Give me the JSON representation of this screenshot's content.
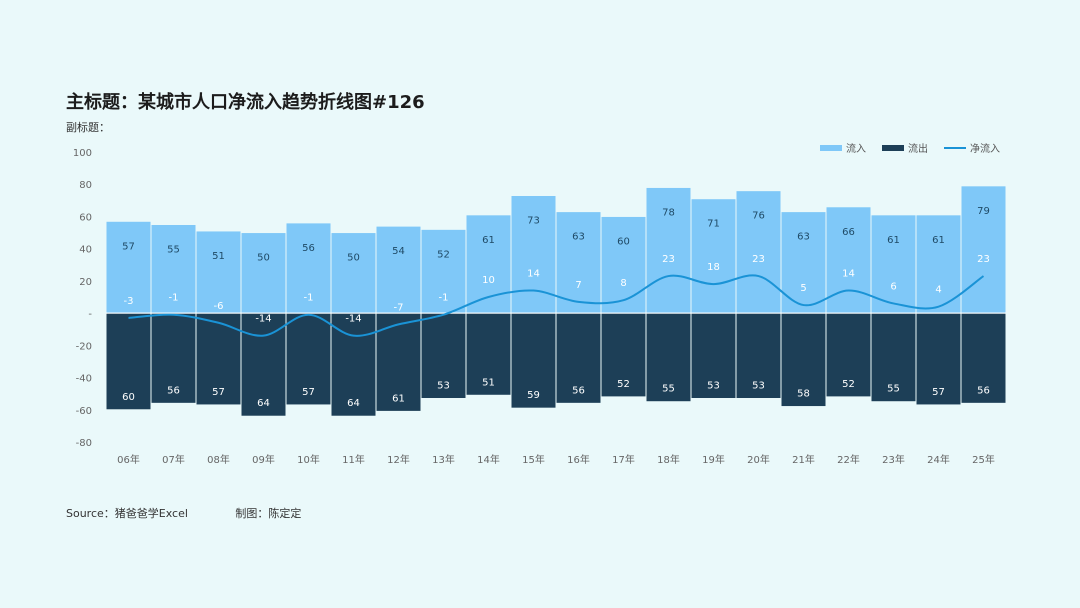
{
  "title": "主标题：某城市人口净流入趋势折线图#126",
  "subtitle": "副标题：",
  "footer": {
    "source": "Source：猪爸爸学Excel",
    "author": "制图：陈定定"
  },
  "colors": {
    "inflow": "#7fc8f8",
    "outflow": "#1d3f57",
    "net": "#1a93d6",
    "axis_text": "#666666"
  },
  "chart_data": {
    "type": "bar",
    "title": "主标题：某城市人口净流入趋势折线图#126",
    "subtitle": "副标题：",
    "categories": [
      "06年",
      "07年",
      "08年",
      "09年",
      "10年",
      "11年",
      "12年",
      "13年",
      "14年",
      "15年",
      "16年",
      "17年",
      "18年",
      "19年",
      "20年",
      "21年",
      "22年",
      "23年",
      "24年",
      "25年"
    ],
    "ylim": [
      -80,
      100
    ],
    "y_ticks": [
      {
        "value": 100,
        "label": "100"
      },
      {
        "value": 80,
        "label": "80"
      },
      {
        "value": 60,
        "label": "60"
      },
      {
        "value": 40,
        "label": "40"
      },
      {
        "value": 20,
        "label": "20"
      },
      {
        "value": 0,
        "label": "-"
      },
      {
        "value": -20,
        "label": "-20"
      },
      {
        "value": -40,
        "label": "-40"
      },
      {
        "value": -60,
        "label": "-60"
      },
      {
        "value": -80,
        "label": "-80"
      }
    ],
    "legend_position": "top-right",
    "series": [
      {
        "name": "流入",
        "type": "bar",
        "values": [
          57,
          55,
          51,
          50,
          56,
          50,
          54,
          52,
          61,
          73,
          63,
          60,
          78,
          71,
          76,
          63,
          66,
          61,
          61,
          79
        ]
      },
      {
        "name": "流出",
        "type": "bar",
        "values": [
          60,
          56,
          57,
          64,
          57,
          64,
          61,
          53,
          51,
          59,
          56,
          52,
          55,
          53,
          53,
          58,
          52,
          55,
          57,
          56
        ]
      },
      {
        "name": "净流入",
        "type": "line",
        "smooth": true,
        "values": [
          -3,
          -1,
          -6,
          -14,
          -1,
          -14,
          -7,
          -1,
          10,
          14,
          7,
          8,
          23,
          18,
          23,
          5,
          14,
          6,
          4,
          23
        ]
      }
    ]
  }
}
